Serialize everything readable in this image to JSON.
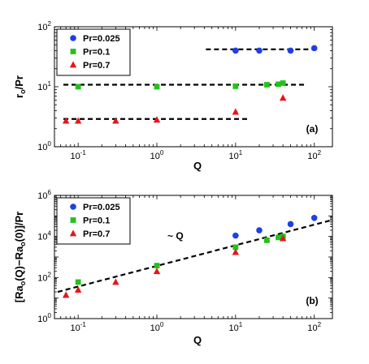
{
  "chart_data": [
    {
      "panel": "(a)",
      "type": "scatter",
      "xlabel": "Q",
      "ylabel_main": "r",
      "ylabel_sub": "o",
      "ylabel_tail": "/Pr",
      "xscale": "log",
      "yscale": "log",
      "xlim": [
        0.05,
        170
      ],
      "ylim": [
        1,
        100
      ],
      "xticks": [
        {
          "v": 0.1,
          "base": "10",
          "exp": "-1"
        },
        {
          "v": 1,
          "base": "10",
          "exp": "0"
        },
        {
          "v": 10,
          "base": "10",
          "exp": "1"
        },
        {
          "v": 100,
          "base": "10",
          "exp": "2"
        }
      ],
      "yticks": [
        {
          "v": 1,
          "base": "10",
          "exp": "0"
        },
        {
          "v": 10,
          "base": "10",
          "exp": "1"
        },
        {
          "v": 100,
          "base": "10",
          "exp": "2"
        }
      ],
      "legend_position": "top-left",
      "series": [
        {
          "name": "Pr=0.025",
          "marker": "circle",
          "color": "#1f3fe6",
          "x": [
            10,
            20,
            50,
            100
          ],
          "y": [
            40,
            40,
            40,
            44
          ]
        },
        {
          "name": "Pr=0.1",
          "marker": "square",
          "color": "#22c21c",
          "x": [
            0.1,
            1,
            10,
            25,
            35,
            40
          ],
          "y": [
            10,
            10,
            10.2,
            10.8,
            11,
            11.5
          ]
        },
        {
          "name": "Pr=0.7",
          "marker": "triangle",
          "color": "#e8141c",
          "x": [
            0.07,
            0.1,
            0.3,
            1,
            10,
            40
          ],
          "y": [
            2.7,
            2.7,
            2.7,
            2.8,
            3.8,
            6.5
          ]
        }
      ],
      "fit_lines": [
        {
          "x": [
            4.2,
            110
          ],
          "y": [
            42,
            42
          ]
        },
        {
          "x": [
            0.065,
            75
          ],
          "y": [
            10.8,
            10.8
          ]
        },
        {
          "x": [
            0.065,
            14
          ],
          "y": [
            2.9,
            2.9
          ]
        }
      ]
    },
    {
      "panel": "(b)",
      "type": "scatter",
      "xlabel": "Q",
      "ylabel": "[Ra",
      "ylabel_parts": [
        "[Ra",
        "o",
        "(Q)−Ra",
        "o",
        "(0)]/Pr"
      ],
      "xscale": "log",
      "yscale": "log",
      "xlim": [
        0.05,
        170
      ],
      "ylim": [
        1,
        1000000
      ],
      "xticks": [
        {
          "v": 0.1,
          "base": "10",
          "exp": "-1"
        },
        {
          "v": 1,
          "base": "10",
          "exp": "0"
        },
        {
          "v": 10,
          "base": "10",
          "exp": "1"
        },
        {
          "v": 100,
          "base": "10",
          "exp": "2"
        }
      ],
      "yticks": [
        {
          "v": 1,
          "base": "10",
          "exp": "0"
        },
        {
          "v": 100,
          "base": "10",
          "exp": "2"
        },
        {
          "v": 10000,
          "base": "10",
          "exp": "4"
        },
        {
          "v": 1000000,
          "base": "10",
          "exp": "6"
        }
      ],
      "legend_position": "top-left",
      "annotation": "~ Q",
      "series": [
        {
          "name": "Pr=0.025",
          "marker": "circle",
          "color": "#1f3fe6",
          "x": [
            10,
            20,
            50,
            100
          ],
          "y": [
            11000,
            20000,
            40000,
            80000
          ]
        },
        {
          "name": "Pr=0.1",
          "marker": "square",
          "color": "#22c21c",
          "x": [
            0.1,
            1,
            10,
            25,
            35,
            40
          ],
          "y": [
            60,
            380,
            3000,
            6500,
            9000,
            10000
          ]
        },
        {
          "name": "Pr=0.7",
          "marker": "triangle",
          "color": "#e8141c",
          "x": [
            0.07,
            0.1,
            0.3,
            1,
            10,
            40
          ],
          "y": [
            14,
            25,
            60,
            200,
            1700,
            8000
          ]
        }
      ],
      "fit_lines": [
        {
          "x": [
            0.055,
            160
          ],
          "y": [
            20,
            60000
          ]
        }
      ]
    }
  ]
}
